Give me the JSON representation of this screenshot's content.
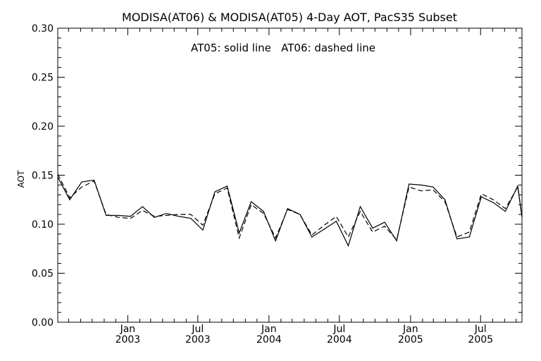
{
  "chart_data": {
    "type": "line",
    "title": "MODISA(AT06) & MODISA(AT05) 4-Day AOT, PacS35 Subset",
    "annotation": "AT05: solid line   AT06: dashed line",
    "xlabel": "",
    "ylabel": "AOT",
    "ylim": [
      0.0,
      0.3
    ],
    "yticks": [
      "0.00",
      "0.05",
      "0.10",
      "0.15",
      "0.20",
      "0.25",
      "0.30"
    ],
    "xlim": [
      "2002-07-04",
      "2005-10-16"
    ],
    "xticks": [
      {
        "date": "2003-01-01",
        "month": "Jan",
        "year": "2003"
      },
      {
        "date": "2003-07-01",
        "month": "Jul",
        "year": "2003"
      },
      {
        "date": "2004-01-01",
        "month": "Jan",
        "year": "2004"
      },
      {
        "date": "2004-07-01",
        "month": "Jul",
        "year": "2004"
      },
      {
        "date": "2005-01-01",
        "month": "Jan",
        "year": "2005"
      },
      {
        "date": "2005-07-01",
        "month": "Jul",
        "year": "2005"
      }
    ],
    "grid": false,
    "line_color": "#000000",
    "series": [
      {
        "name": "AT05",
        "style": "solid",
        "x": [
          "2002-07-04",
          "2002-08-04",
          "2002-09-04",
          "2002-10-06",
          "2002-11-06",
          "2002-12-08",
          "2003-01-08",
          "2003-02-08",
          "2003-03-11",
          "2003-04-11",
          "2003-05-13",
          "2003-06-13",
          "2003-07-14",
          "2003-08-14",
          "2003-09-15",
          "2003-10-16",
          "2003-11-16",
          "2003-12-18",
          "2004-01-18",
          "2004-02-18",
          "2004-03-21",
          "2004-04-21",
          "2004-05-23",
          "2004-06-23",
          "2004-07-24",
          "2004-08-24",
          "2004-09-25",
          "2004-10-26",
          "2004-11-26",
          "2004-12-28",
          "2005-01-28",
          "2005-02-28",
          "2005-03-31",
          "2005-05-01",
          "2005-06-02",
          "2005-07-03",
          "2005-08-03",
          "2005-09-03",
          "2005-10-05",
          "2005-10-16"
        ],
        "values": [
          0.148,
          0.125,
          0.143,
          0.145,
          0.109,
          0.109,
          0.108,
          0.118,
          0.107,
          0.111,
          0.108,
          0.106,
          0.094,
          0.133,
          0.139,
          0.091,
          0.123,
          0.113,
          0.083,
          0.116,
          0.11,
          0.087,
          0.095,
          0.103,
          0.078,
          0.118,
          0.096,
          0.102,
          0.083,
          0.141,
          0.14,
          0.138,
          0.125,
          0.085,
          0.087,
          0.128,
          0.122,
          0.113,
          0.139,
          0.107
        ]
      },
      {
        "name": "AT06",
        "style": "dashed",
        "x": [
          "2002-07-04",
          "2002-08-04",
          "2002-09-04",
          "2002-10-06",
          "2002-11-06",
          "2002-12-08",
          "2003-01-08",
          "2003-02-08",
          "2003-03-11",
          "2003-04-11",
          "2003-05-13",
          "2003-06-13",
          "2003-07-14",
          "2003-08-14",
          "2003-09-15",
          "2003-10-16",
          "2003-11-16",
          "2003-12-18",
          "2004-01-18",
          "2004-02-18",
          "2004-03-21",
          "2004-04-21",
          "2004-05-23",
          "2004-06-23",
          "2004-07-24",
          "2004-08-24",
          "2004-09-25",
          "2004-10-26",
          "2004-11-26",
          "2004-12-28",
          "2005-01-28",
          "2005-02-28",
          "2005-03-31",
          "2005-05-01",
          "2005-06-02",
          "2005-07-03",
          "2005-08-03",
          "2005-09-03",
          "2005-10-05",
          "2005-10-16"
        ],
        "values": [
          0.151,
          0.127,
          0.138,
          0.144,
          0.11,
          0.107,
          0.106,
          0.114,
          0.108,
          0.109,
          0.11,
          0.11,
          0.099,
          0.131,
          0.137,
          0.086,
          0.12,
          0.111,
          0.086,
          0.115,
          0.11,
          0.089,
          0.099,
          0.108,
          0.087,
          0.113,
          0.092,
          0.098,
          0.084,
          0.138,
          0.134,
          0.135,
          0.123,
          0.087,
          0.092,
          0.131,
          0.125,
          0.116,
          0.138,
          0.108
        ]
      }
    ]
  }
}
